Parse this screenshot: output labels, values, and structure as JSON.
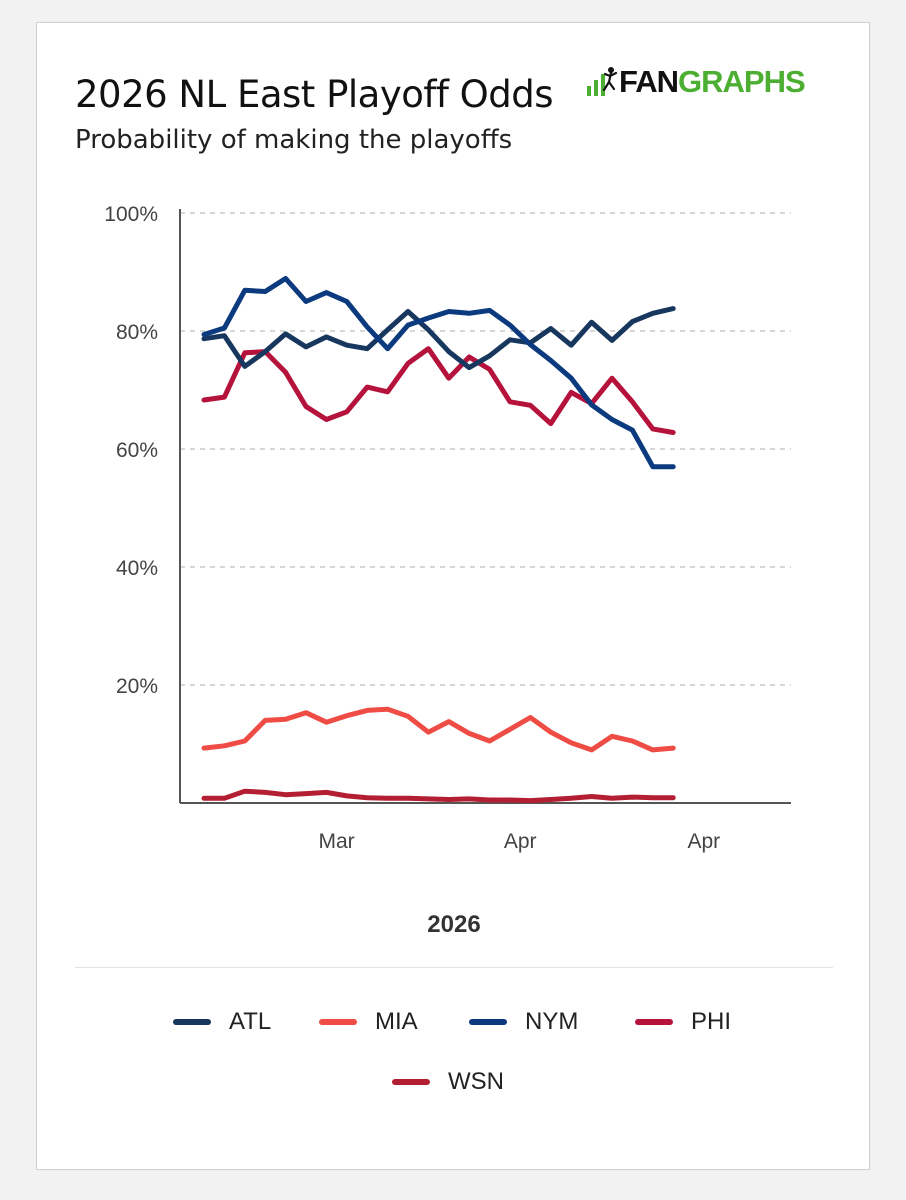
{
  "title": "2026 NL East Playoff Odds",
  "subtitle": "Probability of making the playoffs",
  "logo": {
    "prefix": "FAN",
    "suffix": "GRAPHS",
    "color": "#4caf32"
  },
  "chart_data": {
    "type": "line",
    "title": "2026 NL East Playoff Odds",
    "subtitle": "Probability of making the playoffs",
    "xlabel": "2026",
    "ylabel": "",
    "ylim": [
      0,
      100
    ],
    "yticks": [
      {
        "value": 20,
        "label": "20%"
      },
      {
        "value": 40,
        "label": "40%"
      },
      {
        "value": 60,
        "label": "60%"
      },
      {
        "value": 80,
        "label": "80%"
      },
      {
        "value": 100,
        "label": "100%"
      }
    ],
    "xlim": [
      0,
      28
    ],
    "xticks": [
      {
        "value": 6.5,
        "label": "Mar"
      },
      {
        "value": 15.5,
        "label": "Apr"
      },
      {
        "value": 24.5,
        "label": "Apr"
      }
    ],
    "x": [
      0,
      1,
      2,
      3,
      4,
      5,
      6,
      7,
      8,
      9,
      10,
      11,
      12,
      13,
      14,
      15,
      16,
      17,
      18,
      19,
      20,
      21,
      22,
      23,
      24,
      25,
      26,
      27,
      28
    ],
    "grid": true,
    "series": [
      {
        "name": "ATL",
        "color": "#17375e",
        "values": [
          78.7,
          79.2,
          74.0,
          76.5,
          79.5,
          77.3,
          79.0,
          77.6,
          77.0,
          80.2,
          83.3,
          80.2,
          76.5,
          73.8,
          75.8,
          78.5,
          78.0,
          80.4,
          77.6,
          81.5,
          78.4,
          81.6,
          83.0,
          83.8,
          null,
          null,
          null,
          null,
          null
        ]
      },
      {
        "name": "MIA",
        "color": "#ee4c44",
        "values": [
          9.3,
          9.7,
          10.5,
          14.0,
          14.2,
          15.3,
          13.7,
          14.8,
          15.7,
          15.9,
          14.7,
          12.0,
          13.8,
          11.8,
          10.5,
          12.5,
          14.5,
          12.0,
          10.2,
          9.0,
          11.3,
          10.5,
          9.0,
          9.3,
          null,
          null,
          null,
          null,
          null
        ]
      },
      {
        "name": "NYM",
        "color": "#0c3a7f",
        "values": [
          79.4,
          80.5,
          86.9,
          86.7,
          88.9,
          85.0,
          86.5,
          85.0,
          80.7,
          77.0,
          81.0,
          82.2,
          83.3,
          83.0,
          83.5,
          81.0,
          77.7,
          75.0,
          72.0,
          67.5,
          65.0,
          63.2,
          57.0,
          57.0,
          null,
          null,
          null,
          null,
          null
        ]
      },
      {
        "name": "PHI",
        "color": "#b5123c",
        "values": [
          68.3,
          68.8,
          76.3,
          76.5,
          73.0,
          67.2,
          65.0,
          66.3,
          70.5,
          69.7,
          74.5,
          77.0,
          72.0,
          75.6,
          73.5,
          68.0,
          67.4,
          64.3,
          69.6,
          67.7,
          72.0,
          68.0,
          63.4,
          62.8,
          null,
          null,
          null,
          null,
          null
        ]
      },
      {
        "name": "WSN",
        "color": "#b41e32",
        "values": [
          0.8,
          0.8,
          2.0,
          1.8,
          1.4,
          1.6,
          1.8,
          1.2,
          0.9,
          0.8,
          0.8,
          0.7,
          0.6,
          0.7,
          0.5,
          0.5,
          0.4,
          0.6,
          0.8,
          1.1,
          0.8,
          1.0,
          0.9,
          0.9,
          null,
          null,
          null,
          null,
          null
        ]
      }
    ],
    "legend": [
      {
        "name": "ATL",
        "color": "#17375e"
      },
      {
        "name": "MIA",
        "color": "#ee4c44"
      },
      {
        "name": "NYM",
        "color": "#0c3a7f"
      },
      {
        "name": "PHI",
        "color": "#b5123c"
      },
      {
        "name": "WSN",
        "color": "#b41e32"
      }
    ],
    "legend_position": "bottom"
  }
}
